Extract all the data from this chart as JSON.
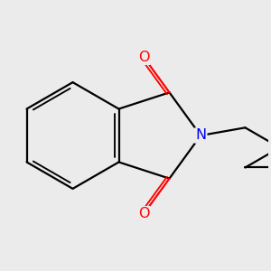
{
  "background_color": "#ebebeb",
  "bond_color": "#000000",
  "bond_width": 1.6,
  "atom_colors": {
    "N": "#0000ee",
    "O": "#ff0000"
  },
  "font_size": 11.5,
  "figsize": [
    3.0,
    3.0
  ],
  "dpi": 100
}
